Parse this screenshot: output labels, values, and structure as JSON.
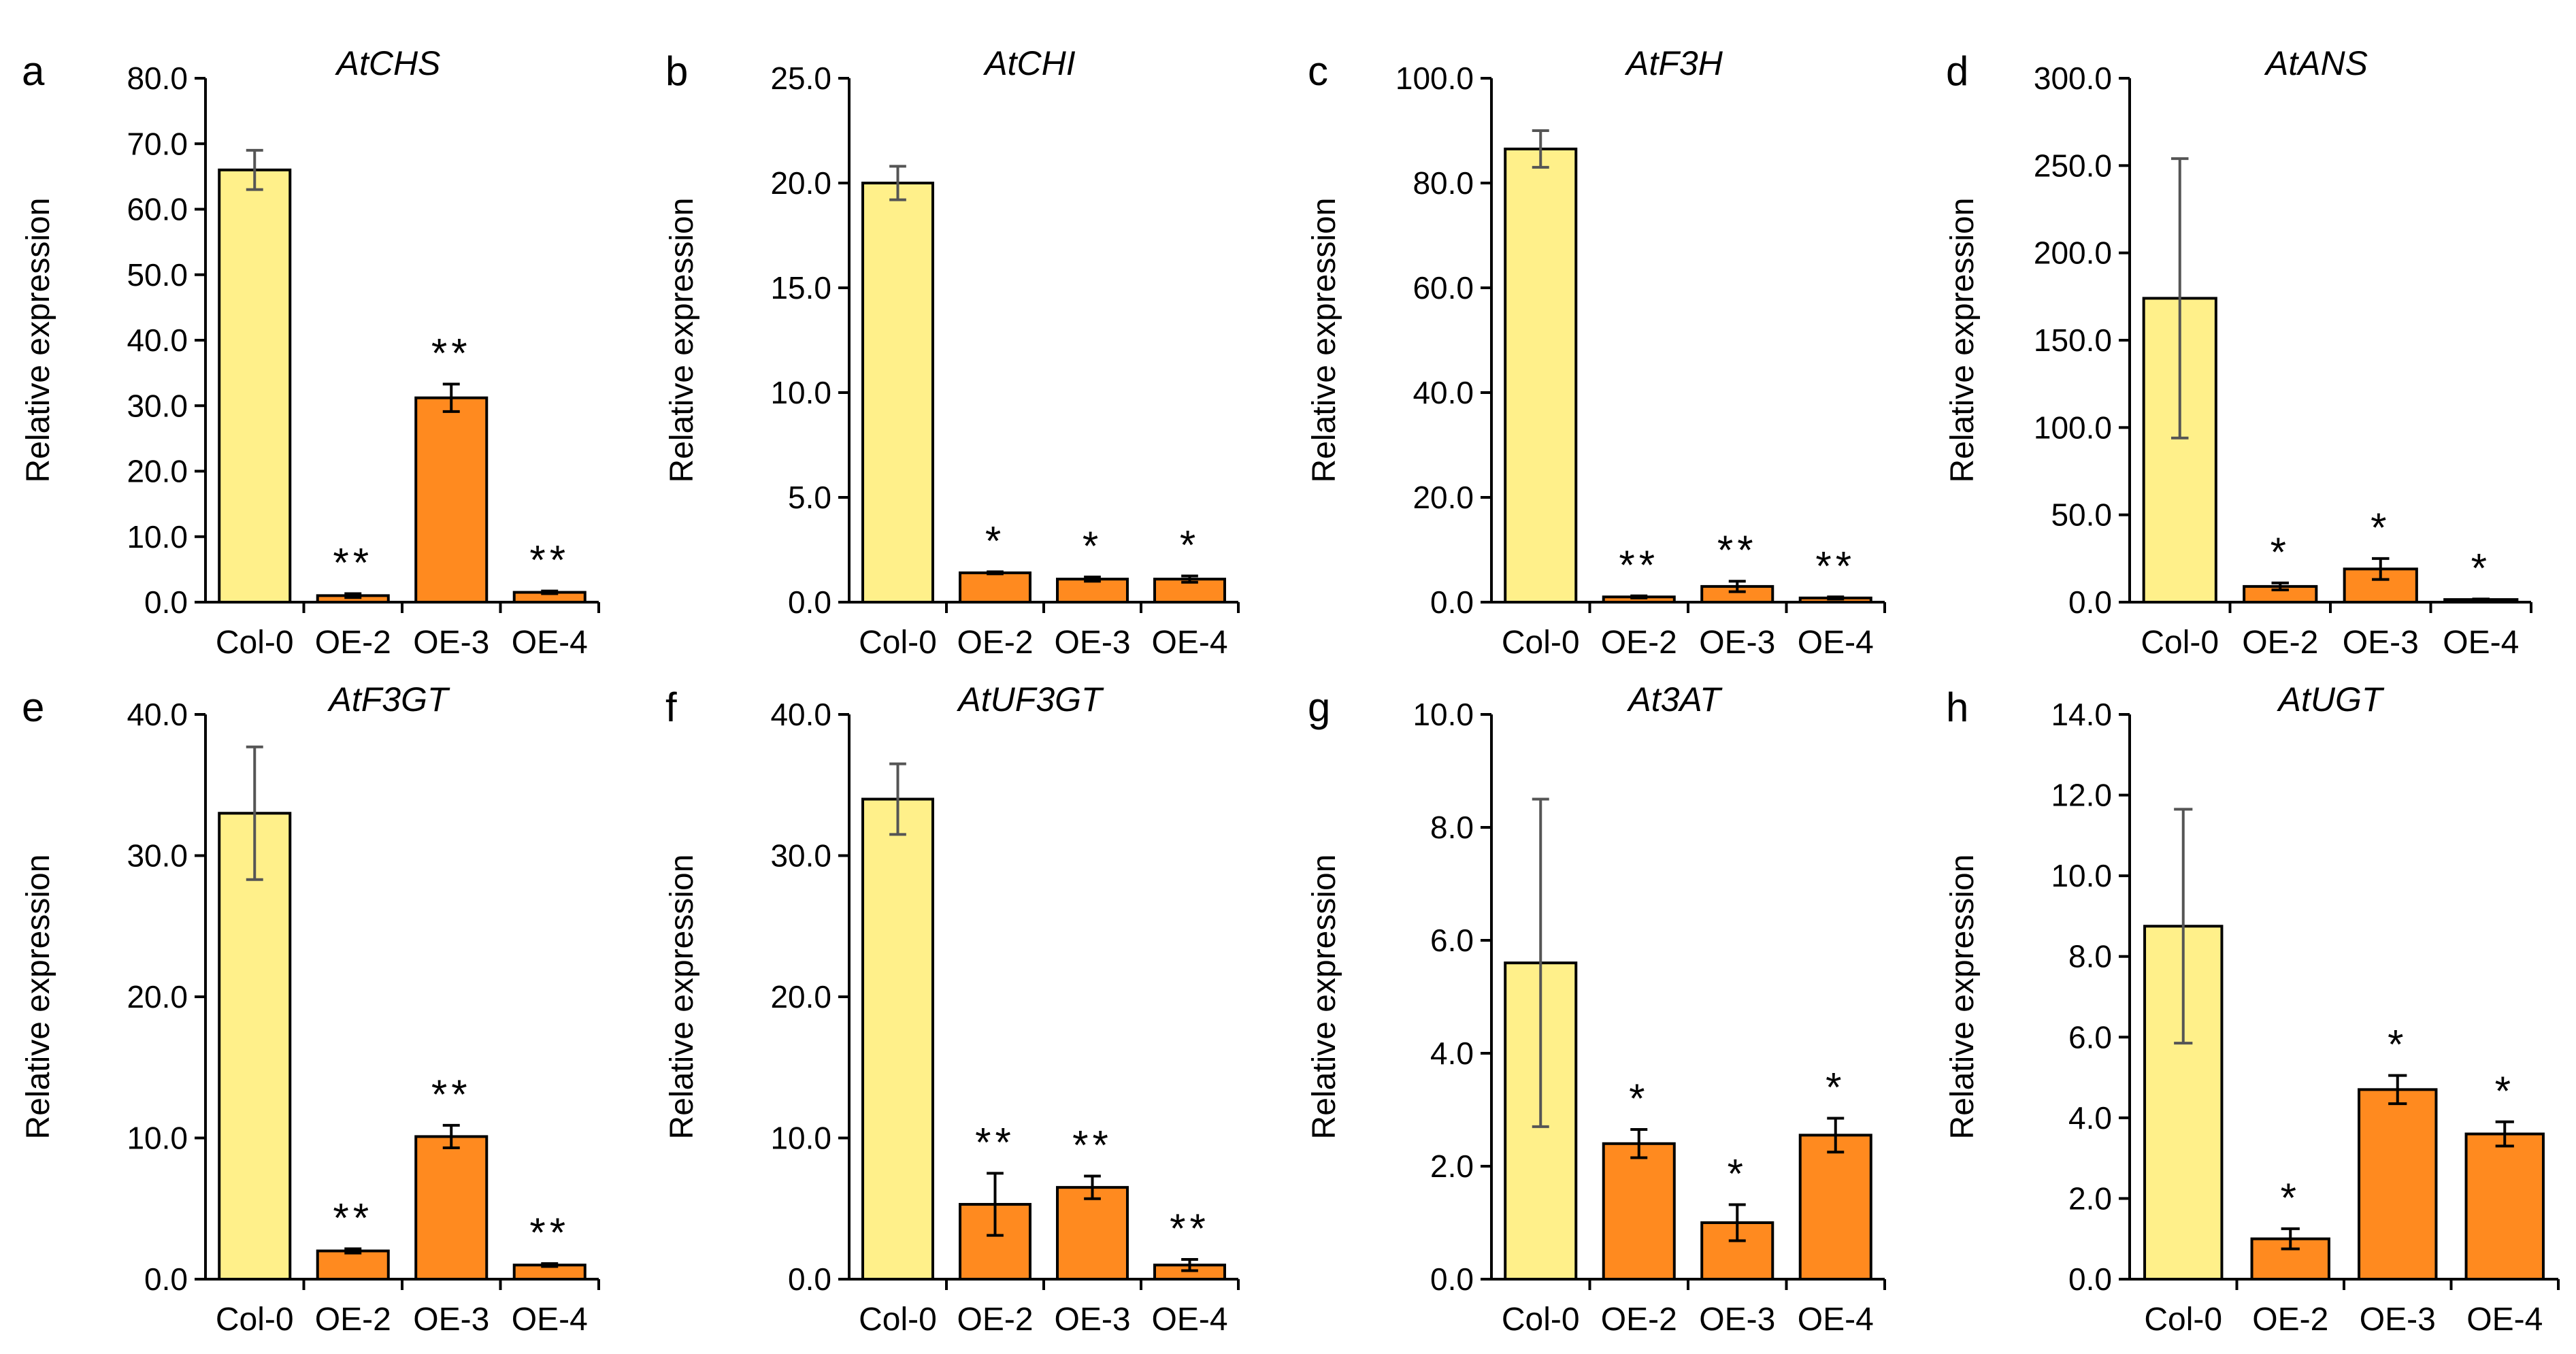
{
  "figure_title": "Relative expression of anthocyanin biosynthesis genes",
  "colors": {
    "control_fill": "#FFF08A",
    "oe_fill": "#FF8A1F",
    "stroke": "#000000",
    "control_error": "#555555",
    "oe_error": "#000000"
  },
  "chart_data": [
    {
      "type": "bar",
      "panel": "a",
      "title": "AtCHS",
      "ylabel": "Relative expression",
      "xlabel": "",
      "ylim": [
        0,
        80
      ],
      "yticks": [
        0,
        10,
        20,
        30,
        40,
        50,
        60,
        70,
        80
      ],
      "ytick_labels": [
        "0.0",
        "10.0",
        "20.0",
        "30.0",
        "40.0",
        "50.0",
        "60.0",
        "70.0",
        "80.0"
      ],
      "categories": [
        "Col-0",
        "OE-2",
        "OE-3",
        "OE-4"
      ],
      "values": [
        66.0,
        1.0,
        31.2,
        1.5
      ],
      "errors": [
        3.0,
        0.3,
        2.1,
        0.2
      ],
      "annotations": [
        "",
        "**",
        "**",
        "**"
      ]
    },
    {
      "type": "bar",
      "panel": "b",
      "title": "AtCHI",
      "ylabel": "Relative expression",
      "xlabel": "",
      "ylim": [
        0,
        25
      ],
      "yticks": [
        0,
        5,
        10,
        15,
        20,
        25
      ],
      "ytick_labels": [
        "0.0",
        "5.0",
        "10.0",
        "15.0",
        "20.0",
        "25.0"
      ],
      "categories": [
        "Col-0",
        "OE-2",
        "OE-3",
        "OE-4"
      ],
      "values": [
        20.0,
        1.4,
        1.1,
        1.1
      ],
      "errors": [
        0.8,
        0.05,
        0.1,
        0.15
      ],
      "annotations": [
        "",
        "*",
        "*",
        "*"
      ]
    },
    {
      "type": "bar",
      "panel": "c",
      "title": "AtF3H",
      "ylabel": "Relative expression",
      "xlabel": "",
      "ylim": [
        0,
        100
      ],
      "yticks": [
        0,
        20,
        40,
        60,
        80,
        100
      ],
      "ytick_labels": [
        "0.0",
        "20.0",
        "40.0",
        "60.0",
        "80.0",
        "100.0"
      ],
      "categories": [
        "Col-0",
        "OE-2",
        "OE-3",
        "OE-4"
      ],
      "values": [
        86.5,
        1.0,
        3.0,
        0.8
      ],
      "errors": [
        3.5,
        0.2,
        1.0,
        0.2
      ],
      "annotations": [
        "",
        "**",
        "**",
        "**"
      ]
    },
    {
      "type": "bar",
      "panel": "d",
      "title": "AtANS",
      "ylabel": "Relative expression",
      "xlabel": "",
      "ylim": [
        0,
        300
      ],
      "yticks": [
        0,
        50,
        100,
        150,
        200,
        250,
        300
      ],
      "ytick_labels": [
        "0.0",
        "50.0",
        "100.0",
        "150.0",
        "200.0",
        "250.0",
        "300.0"
      ],
      "categories": [
        "Col-0",
        "OE-2",
        "OE-3",
        "OE-4"
      ],
      "values": [
        174.0,
        9.0,
        19.0,
        1.5
      ],
      "errors": [
        80.0,
        2.0,
        6.0,
        0.3
      ],
      "annotations": [
        "",
        "*",
        "*",
        "*"
      ]
    },
    {
      "type": "bar",
      "panel": "e",
      "title": "AtF3GT",
      "ylabel": "Relative expression",
      "xlabel": "",
      "ylim": [
        0,
        40
      ],
      "yticks": [
        0,
        10,
        20,
        30,
        40
      ],
      "ytick_labels": [
        "0.0",
        "10.0",
        "20.0",
        "30.0",
        "40.0"
      ],
      "categories": [
        "Col-0",
        "OE-2",
        "OE-3",
        "OE-4"
      ],
      "values": [
        33.0,
        2.0,
        10.1,
        1.0
      ],
      "errors": [
        4.7,
        0.15,
        0.8,
        0.1
      ],
      "annotations": [
        "",
        "**",
        "**",
        "**"
      ]
    },
    {
      "type": "bar",
      "panel": "f",
      "title": "AtUF3GT",
      "ylabel": "Relative expression",
      "xlabel": "",
      "ylim": [
        0,
        40
      ],
      "yticks": [
        0,
        10,
        20,
        30,
        40
      ],
      "ytick_labels": [
        "0.0",
        "10.0",
        "20.0",
        "30.0",
        "40.0"
      ],
      "categories": [
        "Col-0",
        "OE-2",
        "OE-3",
        "OE-4"
      ],
      "values": [
        34.0,
        5.3,
        6.5,
        1.0
      ],
      "errors": [
        2.5,
        2.2,
        0.8,
        0.4
      ],
      "annotations": [
        "",
        "**",
        "**",
        "**"
      ]
    },
    {
      "type": "bar",
      "panel": "g",
      "title": "At3AT",
      "ylabel": "Relative expression",
      "xlabel": "",
      "ylim": [
        0,
        10
      ],
      "yticks": [
        0,
        2,
        4,
        6,
        8,
        10
      ],
      "ytick_labels": [
        "0.0",
        "2.0",
        "4.0",
        "6.0",
        "8.0",
        "10.0"
      ],
      "categories": [
        "Col-0",
        "OE-2",
        "OE-3",
        "OE-4"
      ],
      "values": [
        5.6,
        2.4,
        1.0,
        2.55
      ],
      "errors": [
        2.9,
        0.25,
        0.32,
        0.3
      ],
      "annotations": [
        "",
        "*",
        "*",
        "*"
      ]
    },
    {
      "type": "bar",
      "panel": "h",
      "title": "AtUGT",
      "ylabel": "Relative expression",
      "xlabel": "",
      "ylim": [
        0,
        14
      ],
      "yticks": [
        0,
        2,
        4,
        6,
        8,
        10,
        12,
        14
      ],
      "ytick_labels": [
        "0.0",
        "2.0",
        "4.0",
        "6.0",
        "8.0",
        "10.0",
        "12.0",
        "14.0"
      ],
      "categories": [
        "Col-0",
        "OE-2",
        "OE-3",
        "OE-4"
      ],
      "values": [
        8.75,
        1.0,
        4.7,
        3.6
      ],
      "errors": [
        2.9,
        0.25,
        0.35,
        0.3
      ],
      "annotations": [
        "",
        "*",
        "*",
        "*"
      ]
    }
  ]
}
